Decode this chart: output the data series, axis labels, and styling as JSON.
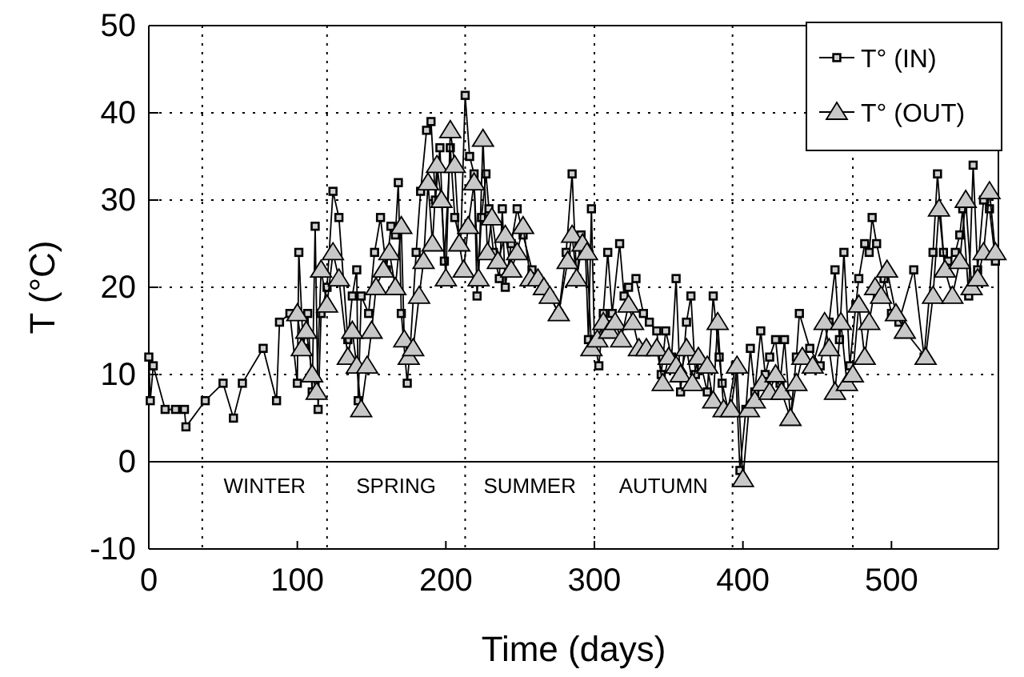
{
  "chart_data": {
    "type": "line",
    "xlabel": "Time (days)",
    "ylabel": "T (°C)",
    "xlim": [
      0,
      572
    ],
    "ylim": [
      -10,
      50
    ],
    "xticks": [
      0,
      100,
      200,
      300,
      400,
      500
    ],
    "yticks": [
      -10,
      0,
      10,
      20,
      30,
      40,
      50
    ],
    "grid": "y",
    "legend": "top right",
    "ref_lines": [
      {
        "axis": "y",
        "value": 0,
        "line_style": "solid"
      },
      {
        "axis": "x",
        "value": 36,
        "line_style": "dotted"
      },
      {
        "axis": "x",
        "value": 120,
        "line_style": "dotted"
      },
      {
        "axis": "x",
        "value": 213,
        "line_style": "dotted"
      },
      {
        "axis": "x",
        "value": 300,
        "line_style": "dotted"
      },
      {
        "axis": "x",
        "value": 393,
        "line_style": "dotted"
      },
      {
        "axis": "x",
        "value": 474,
        "line_style": "dotted"
      }
    ],
    "annotations": [
      "WINTER",
      "SPRING",
      "SUMMER",
      "AUTUMN"
    ],
    "series": [
      {
        "name": "T° (IN)",
        "color": "#000000",
        "marker": "square",
        "x": [
          0,
          1,
          3,
          11,
          18,
          24,
          25,
          38,
          50,
          57,
          63,
          77,
          86,
          88,
          95,
          100,
          101,
          104,
          107,
          110,
          112,
          114,
          116,
          120,
          124,
          128,
          134,
          137,
          140,
          141,
          143,
          148,
          152,
          156,
          160,
          163,
          166,
          168,
          170,
          174,
          176,
          180,
          183,
          187,
          190,
          193,
          196,
          199,
          203,
          206,
          210,
          213,
          216,
          219,
          221,
          224,
          227,
          229,
          232,
          236,
          238,
          240,
          244,
          248,
          252,
          258,
          262,
          266,
          270,
          276,
          281,
          285,
          288,
          291,
          294,
          296,
          298,
          300,
          303,
          306,
          309,
          312,
          317,
          320,
          323,
          328,
          333,
          337,
          342,
          345,
          348,
          352,
          355,
          358,
          362,
          365,
          368,
          372,
          376,
          380,
          384,
          386,
          390,
          395,
          398,
          402,
          405,
          408,
          412,
          415,
          418,
          422,
          425,
          428,
          432,
          436,
          438,
          445,
          452,
          458,
          462,
          465,
          468,
          472,
          476,
          478,
          482,
          485,
          487,
          490,
          495,
          500,
          505,
          515,
          522,
          528,
          531,
          535,
          538,
          543,
          546,
          548,
          552,
          555,
          558,
          562,
          566,
          570
        ],
        "values": [
          12,
          7,
          11,
          6,
          6,
          6,
          4,
          7,
          9,
          5,
          9,
          13,
          7,
          16,
          17,
          9,
          24,
          13,
          17,
          8,
          27,
          6,
          17,
          20,
          31,
          28,
          14,
          19,
          22,
          7,
          19,
          17,
          24,
          28,
          22,
          27,
          26,
          32,
          17,
          9,
          13,
          24,
          31,
          38,
          39,
          30,
          36,
          23,
          36,
          28,
          25,
          42,
          35,
          33,
          19,
          28,
          33,
          29,
          24,
          21,
          29,
          20,
          25,
          29,
          26,
          22,
          21,
          20,
          19,
          17,
          24,
          33,
          21,
          26,
          24,
          14,
          29,
          14,
          11,
          17,
          24,
          17,
          25,
          19,
          20,
          21,
          17,
          16,
          15,
          10,
          15,
          12,
          21,
          8,
          16,
          19,
          10,
          11,
          8,
          19,
          12,
          9,
          6,
          11,
          -1,
          6,
          13,
          8,
          15,
          10,
          12,
          14,
          9,
          14,
          5,
          12,
          17,
          13,
          11,
          16,
          22,
          14,
          24,
          11,
          18,
          21,
          25,
          24,
          28,
          25,
          21,
          17,
          16,
          22,
          12,
          24,
          33,
          24,
          23,
          24,
          26,
          29,
          19,
          34,
          22,
          30,
          29,
          23
        ]
      },
      {
        "name": "T° (OUT)",
        "color": "#000000",
        "marker": "triangle",
        "x": [
          100,
          103,
          106,
          110,
          113,
          116,
          120,
          124,
          128,
          134,
          137,
          140,
          143,
          147,
          150,
          153,
          158,
          162,
          166,
          170,
          172,
          175,
          178,
          182,
          185,
          188,
          191,
          194,
          197,
          200,
          203,
          206,
          209,
          212,
          215,
          219,
          222,
          225,
          228,
          231,
          235,
          240,
          244,
          248,
          252,
          257,
          262,
          266,
          270,
          276,
          282,
          285,
          288,
          292,
          295,
          298,
          302,
          306,
          310,
          314,
          318,
          323,
          326,
          330,
          335,
          342,
          346,
          350,
          355,
          358,
          362,
          366,
          370,
          376,
          380,
          383,
          387,
          392,
          396,
          400,
          404,
          408,
          413,
          418,
          422,
          426,
          432,
          436,
          440,
          447,
          455,
          458,
          462,
          466,
          470,
          474,
          478,
          482,
          485,
          489,
          493,
          497,
          503,
          509,
          523,
          528,
          532,
          536,
          541,
          546,
          550,
          554,
          558,
          562,
          566,
          570
        ],
        "values": [
          17,
          13,
          15,
          10,
          8,
          22,
          18,
          24,
          21,
          12,
          15,
          11,
          6,
          11,
          15,
          20,
          22,
          24,
          20,
          27,
          14,
          12,
          13,
          19,
          23,
          32,
          25,
          34,
          30,
          21,
          38,
          34,
          25,
          22,
          27,
          32,
          21,
          37,
          24,
          28,
          23,
          26,
          22,
          24,
          27,
          21,
          21,
          20,
          19,
          17,
          23,
          26,
          21,
          25,
          24,
          13,
          14,
          16,
          15,
          16,
          14,
          18,
          16,
          13,
          13,
          13,
          9,
          12,
          11,
          10,
          13,
          9,
          12,
          11,
          7,
          16,
          6,
          6,
          11,
          -2,
          6,
          7,
          9,
          8,
          10,
          8,
          5,
          9,
          12,
          11,
          16,
          13,
          8,
          16,
          9,
          10,
          18,
          12,
          16,
          20,
          19,
          22,
          17,
          15,
          12,
          19,
          29,
          22,
          19,
          23,
          30,
          20,
          21,
          24,
          31,
          24
        ]
      }
    ]
  }
}
